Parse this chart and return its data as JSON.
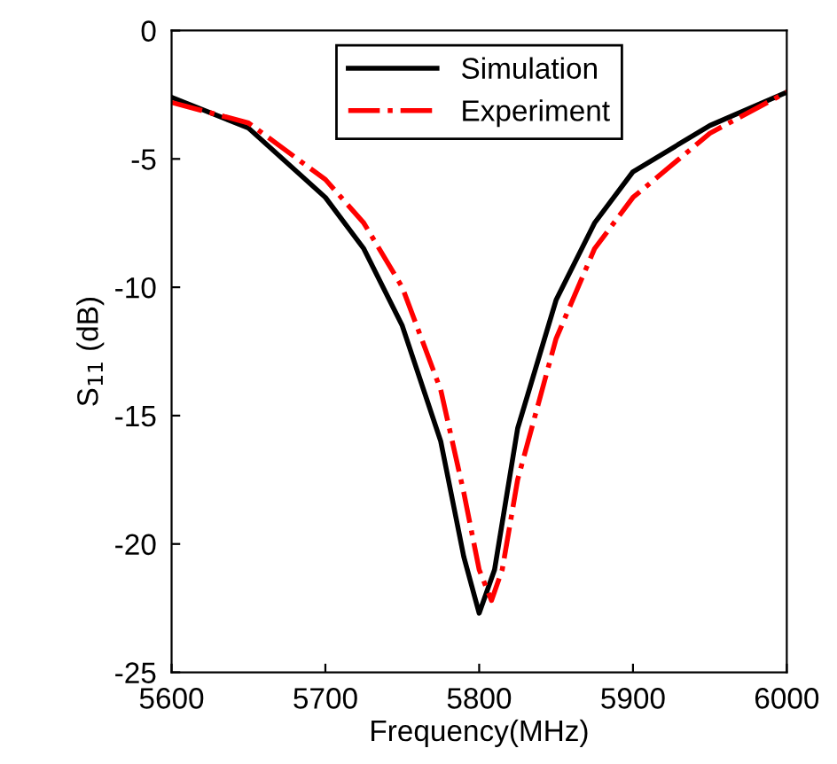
{
  "chart_data": {
    "type": "line",
    "xlabel": "Frequency(MHz)",
    "ylabel": "S$_{11}$ (dB)",
    "xlim": [
      5600,
      6000
    ],
    "xticks": [
      5600,
      5700,
      5800,
      5900,
      6000
    ],
    "ylim": [
      -25,
      0
    ],
    "yticks": [
      -25,
      -20,
      -15,
      -10,
      -5,
      0
    ],
    "grid": false,
    "legend": "top",
    "marker": "none",
    "series": [
      {
        "name": "Simulation",
        "color": "#000000",
        "line_style": "solid",
        "x": [
          5600,
          5650,
          5700,
          5725,
          5750,
          5775,
          5790,
          5800,
          5810,
          5825,
          5850,
          5875,
          5900,
          5950,
          6000
        ],
        "values": [
          -2.6,
          -3.8,
          -6.5,
          -8.5,
          -11.5,
          -16,
          -20.5,
          -22.7,
          -21,
          -15.5,
          -10.5,
          -7.5,
          -5.5,
          -3.7,
          -2.4
        ]
      },
      {
        "name": "Experiment",
        "color": "#ff0000",
        "line_style": "dashdot",
        "x": [
          5600,
          5650,
          5700,
          5725,
          5750,
          5775,
          5790,
          5800,
          5808,
          5815,
          5825,
          5850,
          5875,
          5900,
          5950,
          6000
        ],
        "values": [
          -2.8,
          -3.6,
          -5.8,
          -7.5,
          -10,
          -14,
          -18,
          -21,
          -22.2,
          -21,
          -17.5,
          -12,
          -8.5,
          -6.5,
          -4,
          -2.4
        ]
      }
    ]
  }
}
